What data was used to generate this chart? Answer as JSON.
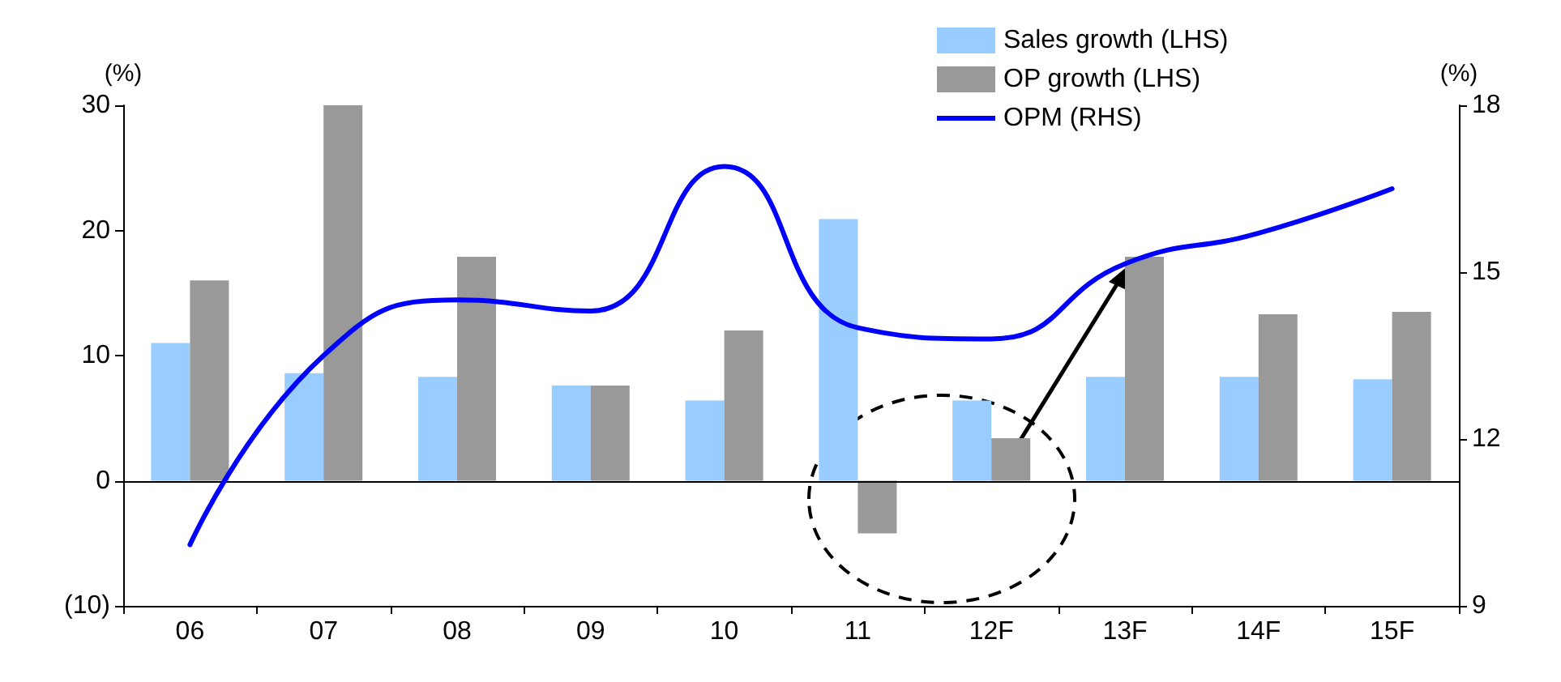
{
  "chart_data": {
    "type": "bar",
    "categories": [
      "06",
      "07",
      "08",
      "09",
      "10",
      "11",
      "12F",
      "13F",
      "14F",
      "15F"
    ],
    "ylabel": "(%)",
    "y2label": "(%)",
    "series": [
      {
        "name": "Sales growth (LHS)",
        "color": "#99ccff",
        "values": [
          11.0,
          8.6,
          8.3,
          7.6,
          6.4,
          20.9,
          6.4,
          8.3,
          8.3,
          8.1
        ]
      },
      {
        "name": "OP growth (LHS)",
        "color": "#999999",
        "values": [
          16.0,
          30.0,
          17.9,
          7.6,
          12.0,
          -4.2,
          3.4,
          17.9,
          13.3,
          13.5
        ]
      },
      {
        "name": "OPM (RHS)",
        "type": "line",
        "axis": "y2",
        "color": "#0000ff",
        "values": [
          10.1,
          13.5,
          14.5,
          14.3,
          16.9,
          14.0,
          13.8,
          15.15,
          15.7,
          16.5
        ]
      }
    ],
    "ylim": [
      -10,
      30
    ],
    "yticks": [
      {
        "value": -10,
        "label": "(10)"
      },
      0,
      10,
      20,
      30
    ],
    "y2lim": [
      9,
      18
    ],
    "y2ticks": [
      9,
      12,
      15,
      18
    ],
    "ref_lines": [
      {
        "axis": "y",
        "value": 0,
        "color": "#000000"
      }
    ],
    "grid": false,
    "legend": "top right",
    "marker": "none",
    "line_style": "solid"
  }
}
